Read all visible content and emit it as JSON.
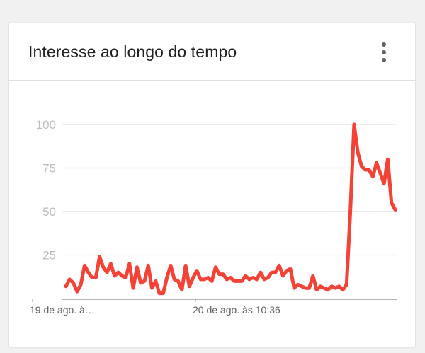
{
  "card": {
    "title": "Interesse ao longo do tempo",
    "menu_icon": "more-vert-icon"
  },
  "colors": {
    "line": "#f44336",
    "grid": "#e0e0e0",
    "axis": "#9e9e9e",
    "tick_text": "#bdbdbd"
  },
  "chart_data": {
    "type": "line",
    "title": "Interesse ao longo do tempo",
    "x_tick_labels": [
      "19 de ago. à…",
      "20 de ago. às 10:36"
    ],
    "y_ticks": [
      25,
      50,
      75,
      100
    ],
    "ylim": [
      0,
      100
    ],
    "grid": true,
    "series": [
      {
        "values": [
          7,
          11,
          9,
          4,
          8,
          19,
          15,
          12,
          12,
          24,
          18,
          15,
          20,
          13,
          15,
          13,
          12,
          20,
          6,
          18,
          9,
          10,
          19,
          6,
          10,
          3,
          3,
          12,
          19,
          11,
          10,
          5,
          19,
          7,
          12,
          16,
          11,
          11,
          12,
          10,
          18,
          14,
          14,
          11,
          12,
          10,
          10,
          10,
          13,
          11,
          12,
          11,
          15,
          11,
          12,
          15,
          15,
          19,
          13,
          16,
          17,
          6,
          8,
          7,
          6,
          6,
          13,
          5,
          7,
          6,
          5,
          7,
          6,
          7,
          5,
          8,
          50,
          100,
          84,
          76,
          74,
          74,
          70,
          78,
          72,
          66,
          80,
          55,
          51
        ]
      }
    ]
  }
}
